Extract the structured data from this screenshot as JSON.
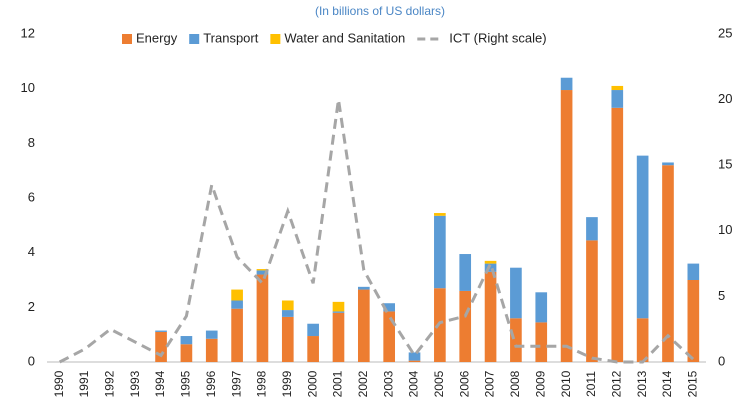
{
  "chart_data": {
    "type": "bar",
    "stacked": true,
    "subtitle": "(In billions of US dollars)",
    "categories": [
      "1990",
      "1991",
      "1992",
      "1993",
      "1994",
      "1995",
      "1996",
      "1997",
      "1998",
      "1999",
      "2000",
      "2001",
      "2002",
      "2003",
      "2004",
      "2005",
      "2006",
      "2007",
      "2008",
      "2009",
      "2010",
      "2011",
      "2012",
      "2013",
      "2014",
      "2015"
    ],
    "series": [
      {
        "name": "Energy",
        "color": "#ed7d31",
        "values": [
          0,
          0,
          0,
          0,
          1.1,
          0.65,
          0.85,
          1.95,
          3.2,
          1.65,
          0.95,
          1.8,
          2.65,
          1.85,
          0.05,
          2.7,
          2.6,
          3.3,
          1.6,
          1.45,
          9.95,
          4.45,
          9.3,
          1.6,
          7.2,
          3.0
        ]
      },
      {
        "name": "Transport",
        "color": "#5b9bd5",
        "values": [
          0,
          0,
          0,
          0,
          0.05,
          0.3,
          0.3,
          0.3,
          0.15,
          0.25,
          0.45,
          0.05,
          0.1,
          0.3,
          0.3,
          2.65,
          1.35,
          0.3,
          1.85,
          1.1,
          0.45,
          0.85,
          0.65,
          5.95,
          0.1,
          0.6
        ]
      },
      {
        "name": "Water and Sanitation",
        "color": "#ffc000",
        "values": [
          0,
          0,
          0,
          0,
          0,
          0,
          0,
          0.4,
          0.05,
          0.35,
          0,
          0.35,
          0,
          0,
          0,
          0.1,
          0,
          0.1,
          0,
          0,
          0,
          0,
          0.15,
          0,
          0,
          0
        ]
      },
      {
        "name": "ICT (Right scale)",
        "color": "#a6a6a6",
        "axis": "y2",
        "dashed": true,
        "values": [
          0,
          1,
          2.5,
          1.5,
          0.5,
          3.5,
          13.5,
          8,
          6,
          11.5,
          6,
          20,
          7,
          3.5,
          0.5,
          3,
          3.5,
          7.5,
          1.2,
          1.2,
          1.2,
          0.3,
          0,
          0,
          2,
          0.2
        ]
      }
    ],
    "ylim": [
      0,
      12
    ],
    "yticks": [
      0,
      2,
      4,
      6,
      8,
      10,
      12
    ],
    "y2lim": [
      0,
      25
    ],
    "y2ticks": [
      0,
      5,
      10,
      15,
      20,
      25
    ],
    "grid": false,
    "legend": "top"
  }
}
